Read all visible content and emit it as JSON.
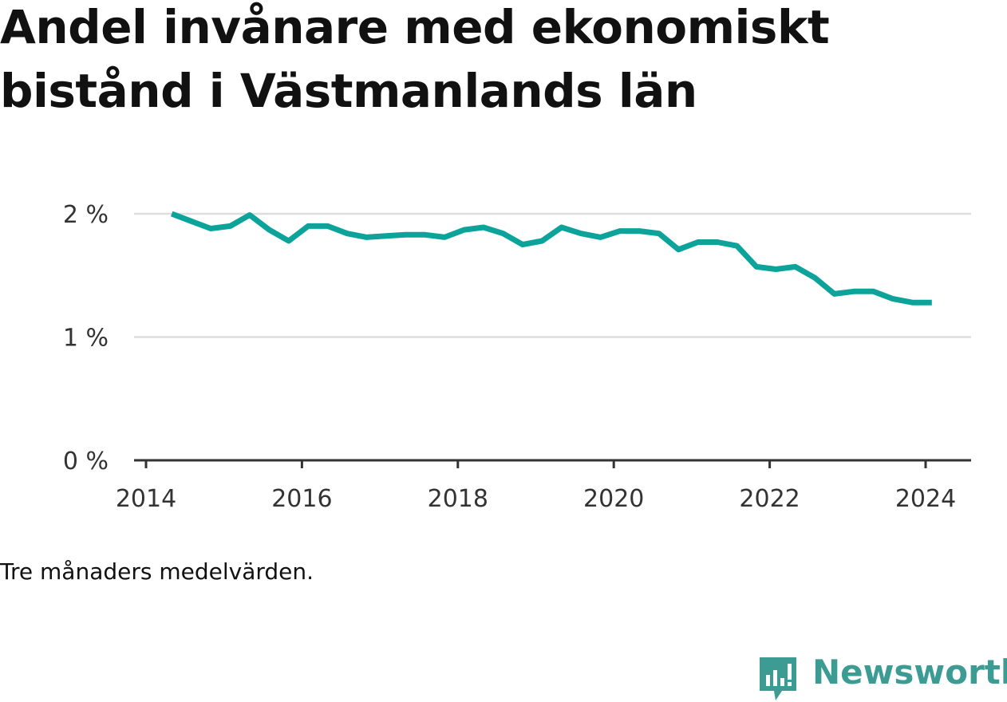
{
  "title_line1": "Andel invånare med ekonomiskt",
  "title_line2": "bistånd i Västmanlands län",
  "note": "Tre månaders medelvärden.",
  "brand": {
    "name": "Newsworthy",
    "logo_icon": "newsworthy-chart-logo-icon",
    "color": "#3c9b93"
  },
  "colors": {
    "line": "#0ba39a",
    "grid": "#dddddd",
    "axis": "#333333"
  },
  "chart_data": {
    "type": "line",
    "title": "Andel invånare med ekonomiskt bistånd i Västmanlands län",
    "xlabel": "",
    "ylabel": "",
    "x_ticks": [
      "2014",
      "2016",
      "2018",
      "2020",
      "2022",
      "2024"
    ],
    "y_ticks": [
      "0 %",
      "1 %",
      "2 %"
    ],
    "ylim": [
      0,
      2
    ],
    "xlim": [
      2014.0,
      2024.6
    ],
    "grid": true,
    "series": [
      {
        "x": [
          2014.33,
          2014.58,
          2014.83,
          2015.08,
          2015.33,
          2015.58,
          2015.83,
          2016.08,
          2016.33,
          2016.58,
          2016.83,
          2017.08,
          2017.33,
          2017.58,
          2017.83,
          2018.08,
          2018.33,
          2018.58,
          2018.83,
          2019.08,
          2019.33,
          2019.58,
          2019.83,
          2020.08,
          2020.33,
          2020.58,
          2020.83,
          2021.08,
          2021.33,
          2021.58,
          2021.83,
          2022.08,
          2022.33,
          2022.58,
          2022.83,
          2023.08,
          2023.33,
          2023.58,
          2023.83,
          2024.08
        ],
        "y": [
          2.0,
          1.94,
          1.88,
          1.9,
          1.99,
          1.87,
          1.78,
          1.9,
          1.9,
          1.84,
          1.81,
          1.82,
          1.83,
          1.83,
          1.81,
          1.87,
          1.89,
          1.84,
          1.75,
          1.78,
          1.89,
          1.84,
          1.81,
          1.86,
          1.86,
          1.84,
          1.71,
          1.77,
          1.77,
          1.74,
          1.57,
          1.55,
          1.57,
          1.48,
          1.35,
          1.37,
          1.37,
          1.31,
          1.28,
          1.28
        ]
      }
    ]
  }
}
